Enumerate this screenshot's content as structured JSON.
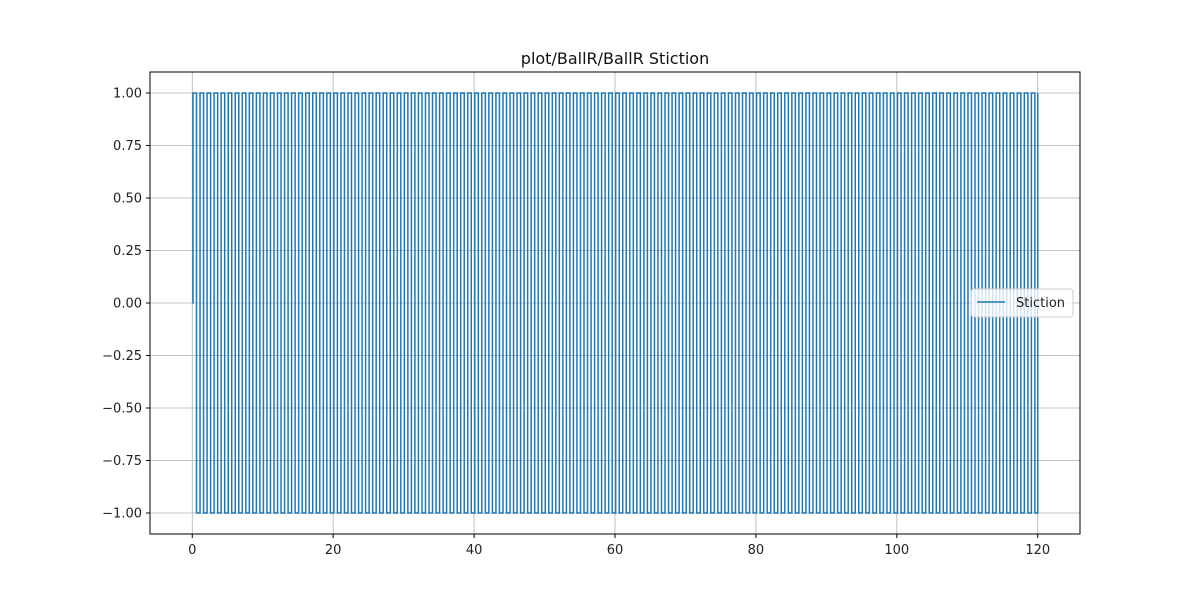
{
  "chart_data": {
    "type": "line",
    "title": "plot/BallR/BallR Stiction",
    "xlabel": "",
    "ylabel": "",
    "xlim": [
      -6,
      126
    ],
    "ylim": [
      -1.1,
      1.1
    ],
    "x_ticks": [
      0,
      20,
      40,
      60,
      80,
      100,
      120
    ],
    "y_ticks": [
      1.0,
      0.75,
      0.5,
      0.25,
      0.0,
      -0.25,
      -0.5,
      -0.75,
      -1.0
    ],
    "x_tick_labels": [
      "0",
      "20",
      "40",
      "60",
      "80",
      "100",
      "120"
    ],
    "y_tick_labels": [
      "1.00",
      "0.75",
      "0.50",
      "0.25",
      "0.00",
      "−0.25",
      "−0.50",
      "−0.75",
      "−1.00"
    ],
    "grid": true,
    "legend_position": "center-right",
    "series": [
      {
        "name": "Stiction",
        "color": "#1f77b4",
        "step": "post",
        "description_of_signal": "",
        "initial": {
          "x": 0,
          "y": 0
        },
        "start_x": 0.1,
        "end_x": 120,
        "high_value": 1,
        "low_value": -1,
        "period": 1.0,
        "values_pattern": [
          1,
          -1
        ]
      }
    ]
  }
}
